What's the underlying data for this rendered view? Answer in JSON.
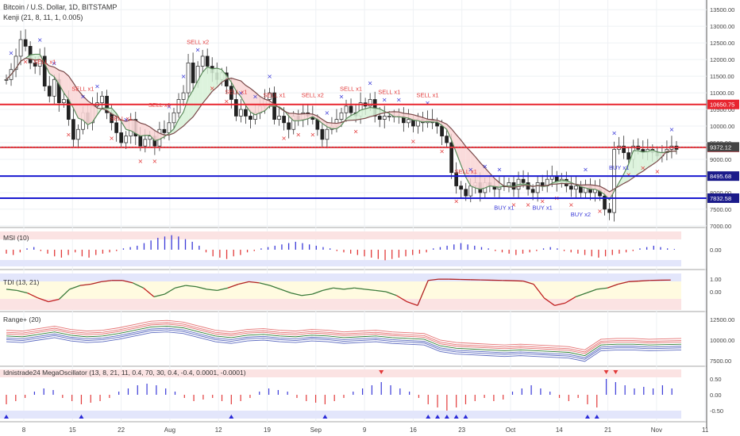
{
  "header": {
    "symbol_title": "Bitcoin / U.S. Dollar, 1D, BITSTAMP",
    "indicator_title": "Kenji (21, 8, 11, 1, 0.005)"
  },
  "colors": {
    "up": "#4a4a4a",
    "down": "#222222",
    "red_line": "#e8252f",
    "blue_line": "#1a1ad0",
    "buy_marker": "#3a3ad8",
    "sell_marker": "#e23a3a",
    "cloud_green": "#d9f2d9",
    "cloud_red": "#f9d7d7"
  },
  "chart_data": [
    {
      "type": "candlestick",
      "title": "Bitcoin / U.S. Dollar, 1D, BITSTAMP",
      "x_tick_labels": [
        "8",
        "15",
        "22",
        "Aug",
        "12",
        "19",
        "Sep",
        "9",
        "16",
        "23",
        "Oct",
        "14",
        "21",
        "Nov",
        "11"
      ],
      "y_tick_labels": [
        "7000.00",
        "7500.00",
        "8000.00",
        "8500.00",
        "9000.00",
        "9500.00",
        "10000.00",
        "10500.00",
        "11000.00",
        "11500.00",
        "12000.00",
        "12500.00",
        "13000.00",
        "13500.00"
      ],
      "ylim": [
        6950,
        13600
      ],
      "horizontal_levels": [
        {
          "value": 10650.75,
          "label": "10650.75",
          "color": "red"
        },
        {
          "value": 9361.4,
          "label": "9361.40",
          "color": "red"
        },
        {
          "value": 9372.12,
          "label": "9372.12",
          "color": "gray"
        },
        {
          "value": 8495.68,
          "label": "8495.68",
          "color": "blue"
        },
        {
          "value": 7832.58,
          "label": "7832.58",
          "color": "blue"
        }
      ],
      "close": [
        11400,
        11700,
        12100,
        12600,
        12400,
        11900,
        11800,
        12100,
        11200,
        10900,
        11400,
        10700,
        10800,
        10200,
        9600,
        9900,
        10400,
        10100,
        10600,
        10700,
        10900,
        10400,
        10100,
        9800,
        9500,
        9700,
        10200,
        9700,
        9400,
        9600,
        9700,
        9400,
        9900,
        9800,
        10100,
        10400,
        10800,
        11000,
        11900,
        11300,
        11800,
        12100,
        11800,
        11600,
        11400,
        11600,
        11200,
        10800,
        10300,
        10500,
        10300,
        10200,
        10400,
        10600,
        10800,
        11000,
        10200,
        10300,
        10100,
        9900,
        10300,
        10200,
        10400,
        10300,
        10200,
        9900,
        9600,
        9900,
        10000,
        10200,
        10400,
        10600,
        10400,
        10300,
        10700,
        10600,
        10800,
        10300,
        10200,
        10300,
        10300,
        10300,
        10300,
        10100,
        10200,
        10000,
        10200,
        10100,
        10200,
        10100,
        10000,
        9700,
        9500,
        8600,
        8200,
        8100,
        7900,
        8200,
        8300,
        8000,
        8300,
        8200,
        8100,
        8200,
        8200,
        8300,
        8100,
        8400,
        8300,
        8100,
        8000,
        8300,
        8200,
        8400,
        8500,
        8300,
        8400,
        8200,
        8100,
        8200,
        8000,
        8200,
        8000,
        8100,
        7900,
        7500,
        7400,
        9300,
        9400,
        9200,
        9000,
        9400,
        9300,
        9200,
        9300,
        9200,
        9100,
        9200,
        9300,
        9400,
        9300
      ],
      "annotations": [
        {
          "text": "SELL x1",
          "kind": "sell"
        },
        {
          "text": "SELL x1",
          "kind": "sell"
        },
        {
          "text": "SELL x1",
          "kind": "sell"
        },
        {
          "text": "SELL x1",
          "kind": "sell"
        },
        {
          "text": "SELL x2",
          "kind": "sell"
        },
        {
          "text": "SELL x1",
          "kind": "sell"
        },
        {
          "text": "SELL x1",
          "kind": "sell"
        },
        {
          "text": "SELL x2",
          "kind": "sell"
        },
        {
          "text": "SELL x1",
          "kind": "sell"
        },
        {
          "text": "SELL x1",
          "kind": "sell"
        },
        {
          "text": "SELL x1",
          "kind": "sell"
        },
        {
          "text": "SELL x1",
          "kind": "sell"
        },
        {
          "text": "BUY x1",
          "kind": "buy"
        },
        {
          "text": "BUY x1",
          "kind": "buy"
        },
        {
          "text": "BUY x2",
          "kind": "buy"
        },
        {
          "text": "BUY x1",
          "kind": "buy"
        }
      ]
    },
    {
      "type": "bar",
      "title": "MSI (10)",
      "y_tick_labels": [
        "0.00"
      ],
      "values": [
        -3,
        -4,
        -2,
        1,
        2,
        -1,
        -3,
        -5,
        -6,
        -4,
        -2,
        -5,
        -6,
        -4,
        -3,
        -2,
        -1,
        1,
        2,
        3,
        5,
        7,
        9,
        10,
        11,
        10,
        8,
        6,
        3,
        -2,
        -5,
        -6,
        -7,
        -5,
        -4,
        -2,
        -1,
        1,
        2,
        3,
        4,
        5,
        6,
        5,
        4,
        3,
        2,
        1,
        -1,
        -2,
        -3,
        -4,
        -5,
        -6,
        -7,
        -8,
        -7,
        -6,
        -5,
        -4,
        -3,
        -2,
        1,
        2,
        3,
        4,
        5,
        4,
        3,
        2,
        1,
        -1,
        -2,
        -3,
        -4,
        -3,
        -2,
        -1,
        1,
        2,
        1,
        -1,
        -2,
        -3,
        -4,
        -5,
        -6,
        -5,
        -4,
        -3,
        -2,
        -1,
        1,
        2,
        3,
        2,
        1,
        0.5
      ]
    },
    {
      "type": "line",
      "title": "TDI (13, 21)",
      "y_tick_labels": [
        "1.00",
        "0.00"
      ],
      "values": [
        0.2,
        0.1,
        -0.1,
        -0.5,
        -0.8,
        -0.6,
        0.2,
        0.5,
        0.6,
        0.8,
        0.9,
        0.9,
        0.7,
        0.3,
        -0.4,
        -0.2,
        0.3,
        0.5,
        0.4,
        0.2,
        0.1,
        0.3,
        0.6,
        0.8,
        0.7,
        0.5,
        0.2,
        -0.1,
        -0.3,
        -0.2,
        0.1,
        0.3,
        0.2,
        0.3,
        0.2,
        0.1,
        0.0,
        -0.3,
        -0.8,
        -1.1,
        0.9,
        1.0,
        1.0,
        0.98,
        0.96,
        0.94,
        0.92,
        0.9,
        0.88,
        0.85,
        0.6,
        -0.5,
        -1.1,
        -0.9,
        -0.4,
        -0.1,
        0.2,
        0.3,
        0.6,
        0.8,
        0.85,
        0.9,
        0.92,
        0.93
      ]
    },
    {
      "type": "line",
      "title": "Range+ (20)",
      "y_tick_labels": [
        "12500.00",
        "10000.00",
        "7500.00"
      ],
      "values": [
        10500,
        10400,
        10700,
        11000,
        10600,
        10400,
        10500,
        10800,
        11200,
        11600,
        11700,
        11500,
        11000,
        10500,
        10300,
        10600,
        10700,
        10500,
        10400,
        10600,
        10500,
        10300,
        10400,
        10500,
        10300,
        10200,
        10100,
        9300,
        9000,
        8900,
        8800,
        8700,
        8800,
        8700,
        8600,
        8500,
        8100,
        9400,
        9500,
        9500,
        9400,
        9450,
        9500
      ]
    },
    {
      "type": "bar",
      "title": "Idnistrade24 MegaOscillator (13, 8, 21, 11, 0.4, 70, 30, 0.4, -0.4, 0.0001, -0.0001)",
      "y_tick_labels": [
        "0.50",
        "0.00",
        "-0.50"
      ],
      "values": [
        -0.3,
        -0.2,
        -0.1,
        0.1,
        0.2,
        0.15,
        -0.1,
        -0.2,
        -0.3,
        -0.25,
        -0.2,
        -0.1,
        0.1,
        0.2,
        0.3,
        0.35,
        0.3,
        0.2,
        0.1,
        -0.1,
        -0.2,
        -0.15,
        -0.1,
        -0.2,
        -0.3,
        -0.2,
        -0.1,
        0.1,
        0.2,
        0.15,
        0.1,
        -0.1,
        -0.2,
        -0.25,
        -0.3,
        -0.2,
        -0.1,
        0.1,
        0.2,
        0.3,
        0.4,
        0.3,
        0.2,
        0.1,
        -0.1,
        -0.3,
        -0.4,
        -0.5,
        -0.4,
        -0.3,
        -0.2,
        -0.1,
        -0.2,
        -0.15,
        0.1,
        0.2,
        0.3,
        0.2,
        0.1,
        -0.1,
        -0.2,
        -0.1,
        -0.3,
        -0.4,
        0.5,
        0.4,
        0.3,
        0.2,
        0.25,
        0.2,
        0.3,
        0.2
      ]
    }
  ]
}
